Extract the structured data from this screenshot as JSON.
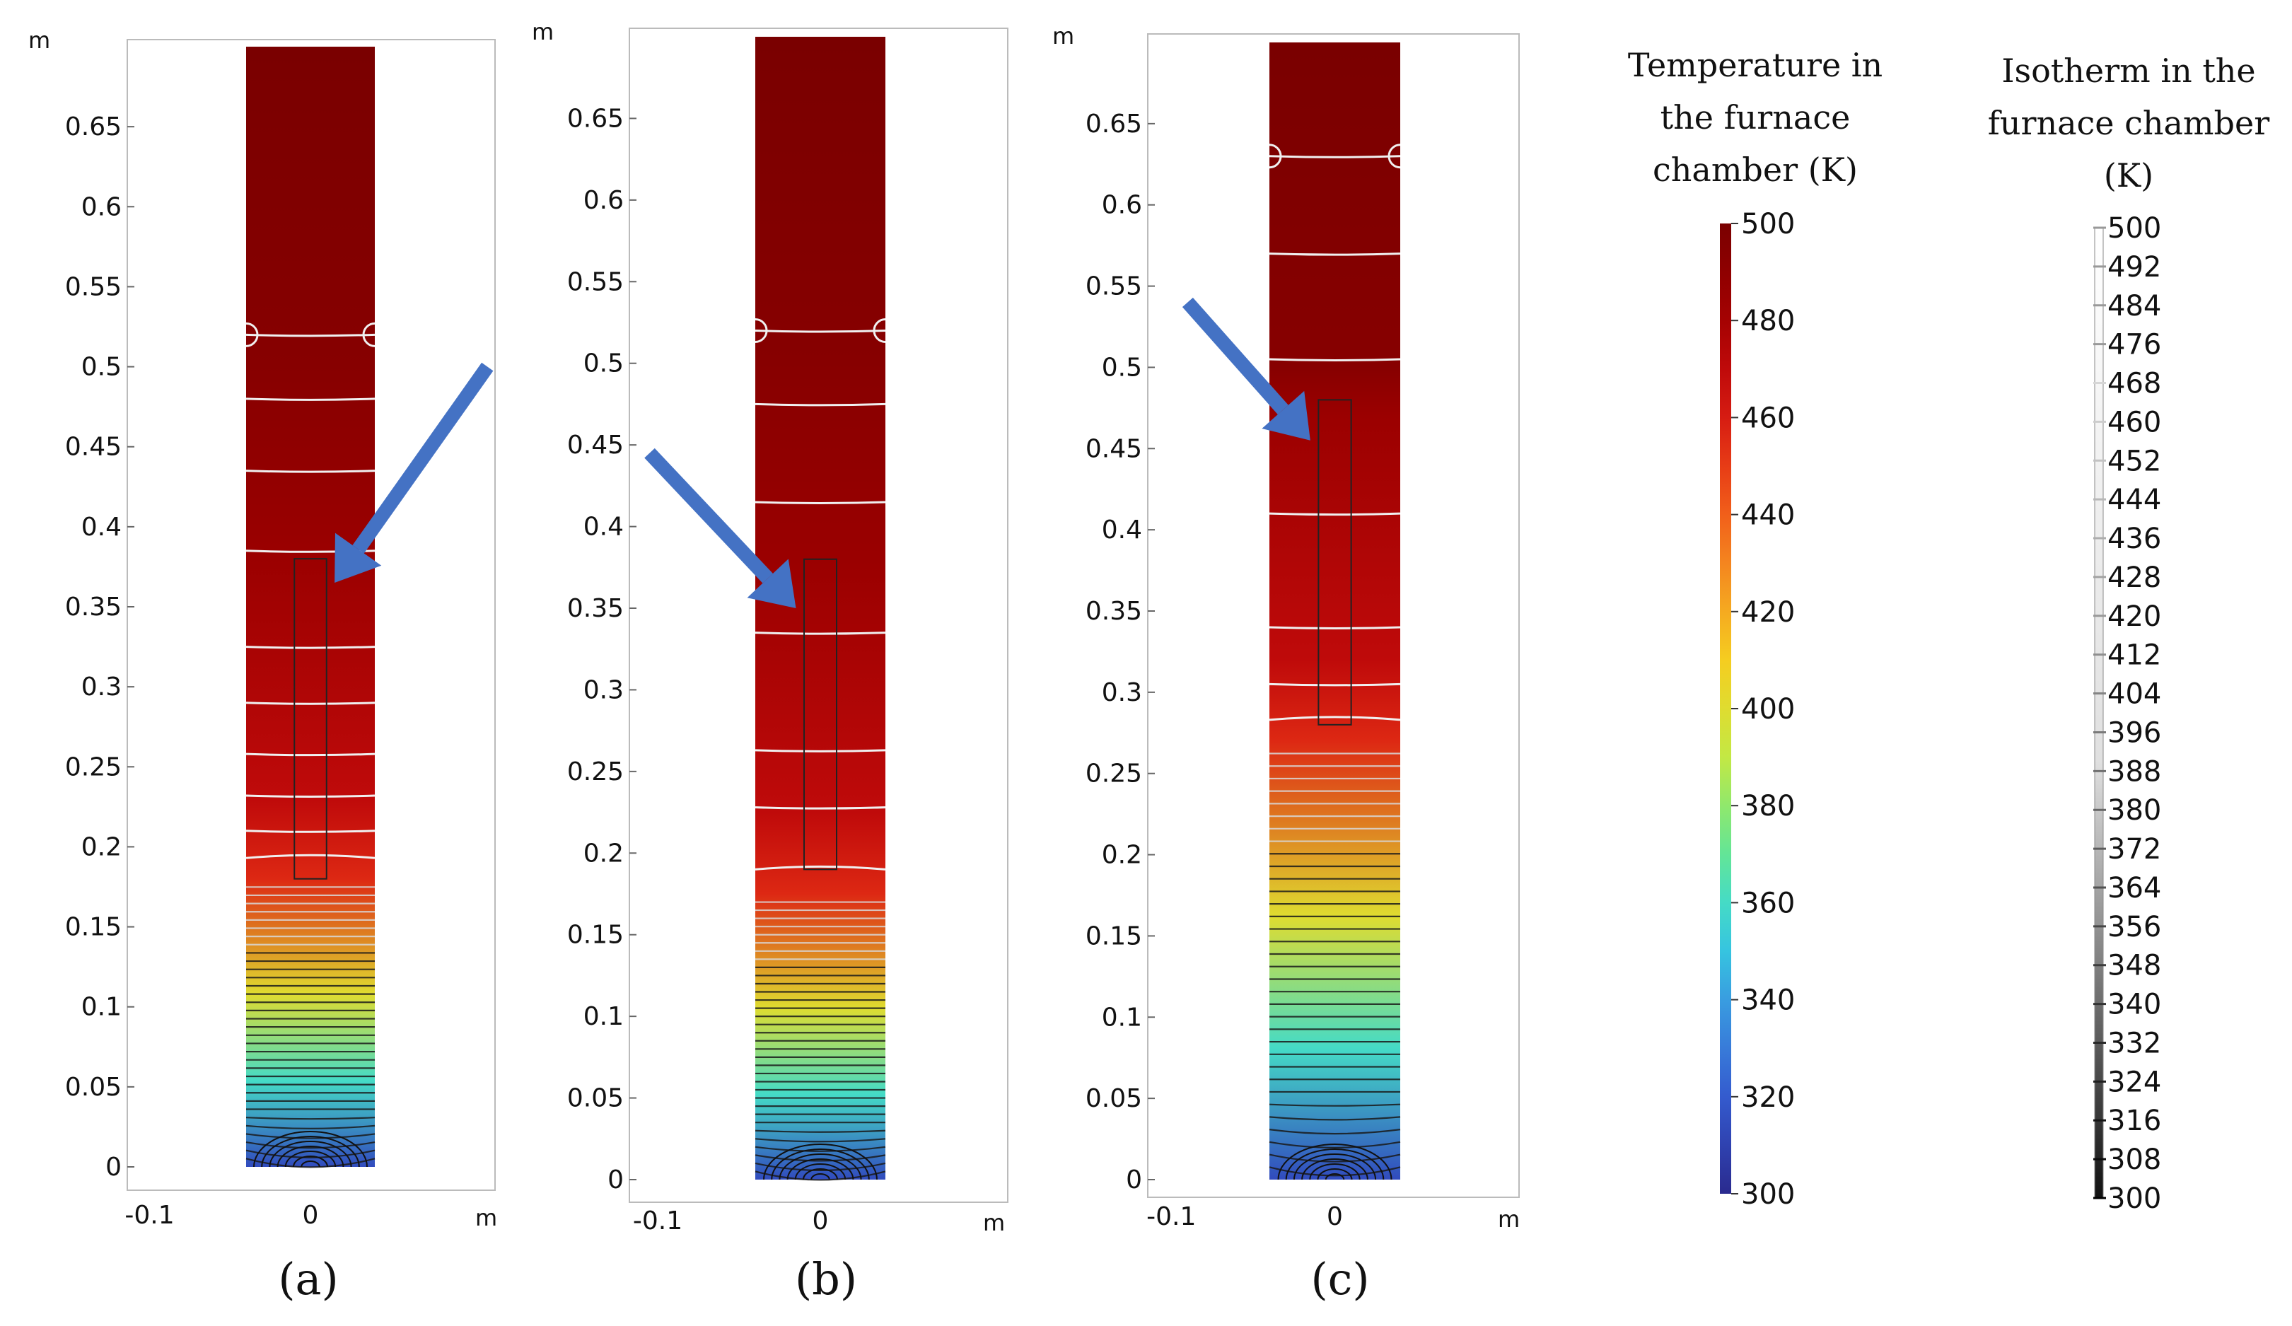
{
  "chart_data": {
    "type": "heatmap",
    "description_units": {
      "axis_unit": "m",
      "temperature_unit": "K"
    },
    "colormap": [
      "#2a2a8e",
      "#3355cc",
      "#3a8fe0",
      "#35d6e0",
      "#6be88a",
      "#c8e840",
      "#f5d020",
      "#f59020",
      "#ef4a18",
      "#d01010",
      "#a00000",
      "#7a0000"
    ],
    "colorbar": {
      "title_lines": [
        "Temperature in",
        "the furnace",
        "chamber (K)"
      ],
      "min": 300,
      "max": 500,
      "ticks": [
        "500",
        "480",
        "460",
        "440",
        "420",
        "400",
        "380",
        "360",
        "340",
        "320",
        "300"
      ]
    },
    "isotherm_legend": {
      "title_lines": [
        "Isotherm in the",
        "furnace chamber",
        "(K)"
      ],
      "ticks": [
        "500",
        "492",
        "484",
        "476",
        "468",
        "460",
        "452",
        "444",
        "436",
        "428",
        "420",
        "412",
        "404",
        "396",
        "388",
        "380",
        "372",
        "364",
        "356",
        "348",
        "340",
        "332",
        "324",
        "316",
        "308",
        "300"
      ]
    },
    "panels": [
      {
        "caption": "(a)",
        "x_unit": "m",
        "y_unit": "m",
        "xlim": [
          -0.12,
          0.12
        ],
        "ylim": [
          -0.01,
          0.7
        ],
        "x_ticks": [
          "-0.1",
          "0"
        ],
        "y_ticks": [
          "0.65",
          "0.6",
          "0.55",
          "0.5",
          "0.45",
          "0.4",
          "0.35",
          "0.3",
          "0.25",
          "0.2",
          "0.15",
          "0.1",
          "0.05",
          "0"
        ],
        "domain_x": [
          -0.04,
          0.04
        ],
        "domain_y": [
          0,
          0.7
        ],
        "sample_x": [
          -0.01,
          0.01
        ],
        "sample_y": [
          0.18,
          0.38
        ],
        "isotherm_y": [
          0.52,
          0.48,
          0.435,
          0.385,
          0.325,
          0.29,
          0.258,
          0.232,
          0.21,
          0.193
        ],
        "steep_from": 0.18,
        "bottom_isotherms": 34,
        "arrow": {
          "from": [
            0.11,
            0.5
          ],
          "to": [
            0.015,
            0.365
          ]
        }
      },
      {
        "caption": "(b)",
        "x_unit": "m",
        "y_unit": "m",
        "xlim": [
          -0.12,
          0.12
        ],
        "ylim": [
          -0.01,
          0.7
        ],
        "x_ticks": [
          "-0.1",
          "0"
        ],
        "y_ticks": [
          "0.65",
          "0.6",
          "0.55",
          "0.5",
          "0.45",
          "0.4",
          "0.35",
          "0.3",
          "0.25",
          "0.2",
          "0.15",
          "0.1",
          "0.05",
          "0"
        ],
        "domain_x": [
          -0.04,
          0.04
        ],
        "domain_y": [
          0,
          0.7
        ],
        "sample_x": [
          -0.01,
          0.01
        ],
        "sample_y": [
          0.19,
          0.38
        ],
        "isotherm_y": [
          0.52,
          0.475,
          0.415,
          0.335,
          0.263,
          0.228,
          0.19
        ],
        "steep_from": 0.175,
        "bottom_isotherms": 34,
        "arrow": {
          "from": [
            -0.105,
            0.445
          ],
          "to": [
            -0.015,
            0.35
          ]
        }
      },
      {
        "caption": "(c)",
        "x_unit": "m",
        "y_unit": "m",
        "xlim": [
          -0.12,
          0.12
        ],
        "ylim": [
          -0.01,
          0.7
        ],
        "x_ticks": [
          "-0.1",
          "0"
        ],
        "y_ticks": [
          "0.65",
          "0.6",
          "0.55",
          "0.5",
          "0.45",
          "0.4",
          "0.35",
          "0.3",
          "0.25",
          "0.2",
          "0.15",
          "0.1",
          "0.05",
          "0"
        ],
        "domain_x": [
          -0.04,
          0.04
        ],
        "domain_y": [
          0,
          0.7
        ],
        "sample_x": [
          -0.01,
          0.01
        ],
        "sample_y": [
          0.28,
          0.48
        ],
        "isotherm_y": [
          0.63,
          0.57,
          0.505,
          0.41,
          0.34,
          0.305,
          0.283
        ],
        "steep_from": 0.27,
        "bottom_isotherms": 34,
        "arrow": {
          "from": [
            -0.09,
            0.54
          ],
          "to": [
            -0.015,
            0.455
          ]
        }
      }
    ]
  }
}
